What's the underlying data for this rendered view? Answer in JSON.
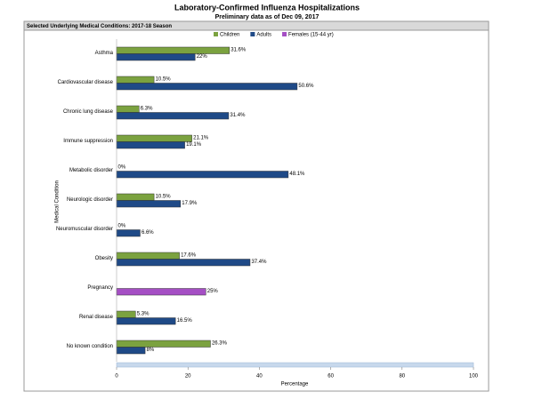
{
  "chart_data": {
    "type": "hbar",
    "title": "Laboratory-Confirmed Influenza Hospitalizations",
    "subtitle": "Preliminary data as of Dec 09, 2017",
    "panel_title": "Selected Underlying Medical Conditions: 2017-18 Season",
    "x_label": "Percentage",
    "y_label": "Medical Condition",
    "categories": [
      "Asthma",
      "Cardiovascular disease",
      "Chronic lung disease",
      "Immune suppression",
      "Metabolic disorder",
      "Neurologic disorder",
      "Neuromuscular disorder",
      "Obesity",
      "Pregnancy",
      "Renal disease",
      "No known condition"
    ],
    "series": [
      {
        "name": "Children",
        "color": "#7ba23f",
        "values": [
          31.6,
          10.5,
          6.3,
          21.1,
          0,
          10.5,
          0,
          17.6,
          null,
          5.3,
          26.3
        ],
        "value_labels": [
          "31.6%",
          "10.5%",
          "6.3%",
          "21.1%",
          "0%",
          "10.5%",
          "0%",
          "17.6%",
          null,
          "5.3%",
          "26.3%"
        ]
      },
      {
        "name": "Adults",
        "color": "#1f4a87",
        "values": [
          22,
          50.6,
          31.4,
          19.1,
          48.1,
          17.9,
          6.6,
          37.4,
          null,
          16.5,
          8
        ],
        "value_labels": [
          "22%",
          "50.6%",
          "31.4%",
          "19.1%",
          "48.1%",
          "17.9%",
          "6.6%",
          "37.4%",
          null,
          "16.5%",
          "8%"
        ]
      },
      {
        "name": "Females (15-44 yr)",
        "color": "#a54fc4",
        "values": [
          null,
          null,
          null,
          null,
          null,
          null,
          null,
          null,
          25,
          null,
          null
        ],
        "value_labels": [
          null,
          null,
          null,
          null,
          null,
          null,
          null,
          null,
          "25%",
          null,
          null
        ]
      }
    ],
    "xlim": [
      0,
      100
    ],
    "xticks": [
      0,
      20,
      40,
      60,
      80,
      100
    ]
  }
}
